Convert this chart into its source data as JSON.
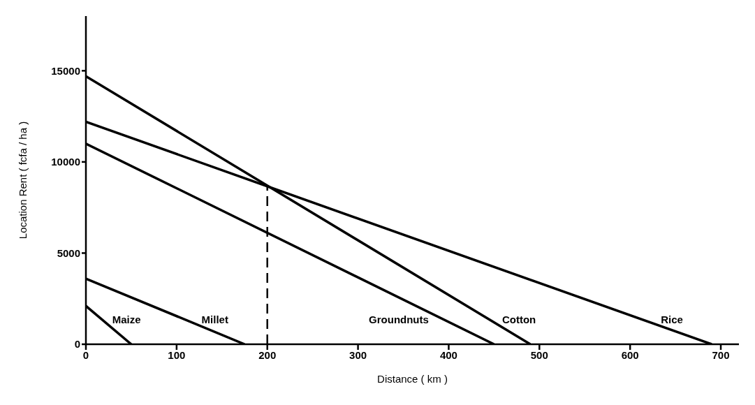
{
  "chart_data": {
    "type": "line",
    "xlabel": "Distance ( km )",
    "ylabel": "Location Rent  ( fcfa / ha )",
    "xlim": [
      0,
      720
    ],
    "xticks": [
      0,
      100,
      200,
      300,
      400,
      500,
      600,
      700
    ],
    "ylim": [
      0,
      18000
    ],
    "yticks": [
      0,
      5000,
      10000,
      15000
    ],
    "grid": false,
    "legend": false,
    "marker": "none",
    "line_style": "solid",
    "series": [
      {
        "name": "Maize",
        "color": "#000000",
        "x": [
          0,
          50
        ],
        "values": [
          2100,
          0
        ]
      },
      {
        "name": "Millet",
        "color": "#000000",
        "x": [
          0,
          175
        ],
        "values": [
          3600,
          0
        ]
      },
      {
        "name": "Groundnuts",
        "color": "#000000",
        "x": [
          0,
          450
        ],
        "values": [
          11000,
          0
        ]
      },
      {
        "name": "Cotton",
        "color": "#000000",
        "x": [
          0,
          490
        ],
        "values": [
          14700,
          0
        ]
      },
      {
        "name": "Rice",
        "color": "#000000",
        "x": [
          0,
          690
        ],
        "values": [
          12200,
          0
        ]
      },
      {
        "color": "#000000",
        "x": [
          200,
          200
        ],
        "values": [
          0,
          8700
        ],
        "line_style": "dashed"
      }
    ]
  }
}
